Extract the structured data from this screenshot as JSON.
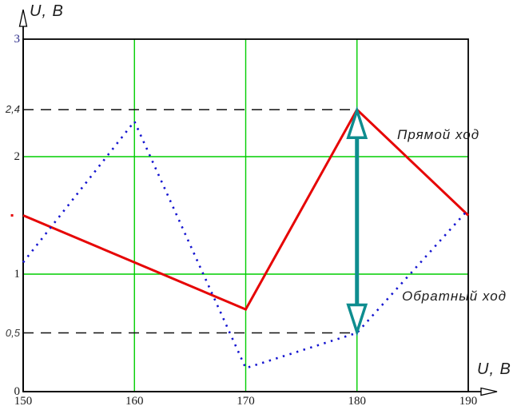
{
  "page": {
    "background": "#ffffff"
  },
  "axes": {
    "x_label": "U, B",
    "y_label": "U, B",
    "x_range": [
      150,
      190
    ],
    "y_range": [
      0,
      3
    ],
    "x_ticks": [
      {
        "value": 150,
        "label": "150"
      },
      {
        "value": 160,
        "label": "160"
      },
      {
        "value": 170,
        "label": "170"
      },
      {
        "value": 180,
        "label": "180"
      },
      {
        "value": 190,
        "label": "190"
      }
    ],
    "y_ticks": [
      {
        "value": 3,
        "label": "3",
        "style": "serif",
        "color": "#2b2b8a"
      },
      {
        "value": 2.4,
        "label": "2,4",
        "style": "cad",
        "color": "#2a2a2a"
      },
      {
        "value": 2,
        "label": "2",
        "style": "serif",
        "color": "#1a1a1a"
      },
      {
        "value": 1,
        "label": "1",
        "style": "serif",
        "color": "#1a1a1a"
      },
      {
        "value": 0.5,
        "label": "0,5",
        "style": "cad",
        "color": "#3a3a3a"
      },
      {
        "value": 0,
        "label": "0",
        "style": "serif",
        "color": "#1a1a1a"
      }
    ]
  },
  "labels": {
    "forward": "Прямой ход",
    "reverse": "Обратный ход"
  },
  "chart_data": {
    "type": "line",
    "title": "",
    "xlabel": "U, B",
    "ylabel": "U, B",
    "xlim": [
      150,
      190
    ],
    "ylim": [
      0,
      3
    ],
    "grid": {
      "vertical_x": [
        160,
        170,
        180
      ],
      "horizontal_y": [
        1,
        2
      ],
      "color": "#00ce00"
    },
    "series": [
      {
        "name": "Прямой ход",
        "color": "#e60505",
        "line_style": "solid",
        "points": [
          [
            150,
            1.5
          ],
          [
            170,
            0.7
          ],
          [
            180,
            2.4
          ],
          [
            190,
            1.5
          ]
        ]
      },
      {
        "name": "Обратный ход",
        "color": "#1414d0",
        "line_style": "dotted",
        "points": [
          [
            150,
            1.1
          ],
          [
            160,
            2.3
          ],
          [
            170,
            0.2
          ],
          [
            180,
            0.5
          ],
          [
            190,
            1.55
          ]
        ]
      }
    ],
    "dashed_guides": [
      {
        "y": 2.4,
        "x_from": 150,
        "x_to": 180
      },
      {
        "y": 0.5,
        "x_from": 150,
        "x_to": 180
      }
    ],
    "hysteresis_arrow": {
      "x": 180,
      "y_from": 0.5,
      "y_to": 2.4,
      "color": "#0e8d8f"
    },
    "stray_point": {
      "x": 149,
      "y": 1.5,
      "color": "#e60505"
    }
  }
}
